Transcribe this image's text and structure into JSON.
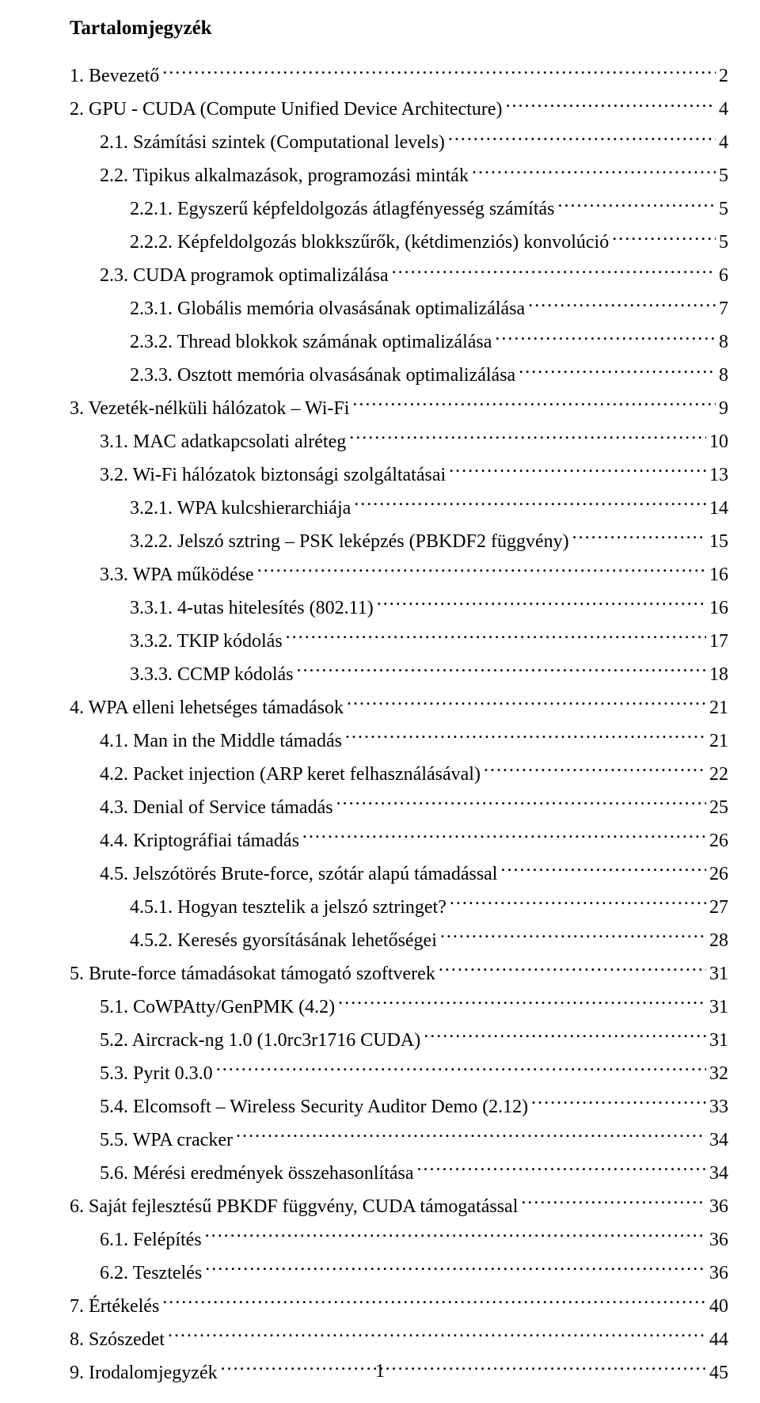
{
  "title": "Tartalomjegyzék",
  "page_number": "1",
  "entries": [
    {
      "indent": 0,
      "label": "1.   Bevezető",
      "page": "2"
    },
    {
      "indent": 0,
      "label": "2.   GPU - CUDA (Compute Unified Device Architecture)",
      "page": "4"
    },
    {
      "indent": 1,
      "label": "2.1.   Számítási szintek (Computational levels)",
      "page": "4"
    },
    {
      "indent": 1,
      "label": "2.2.   Tipikus alkalmazások, programozási minták",
      "page": "5"
    },
    {
      "indent": 2,
      "label": "2.2.1.   Egyszerű képfeldolgozás átlagfényesség számítás",
      "page": "5"
    },
    {
      "indent": 2,
      "label": "2.2.2.   Képfeldolgozás blokkszűrők, (kétdimenziós) konvolúció",
      "page": "5"
    },
    {
      "indent": 1,
      "label": "2.3.   CUDA programok optimalizálása",
      "page": "6"
    },
    {
      "indent": 2,
      "label": "2.3.1.   Globális memória olvasásának optimalizálása",
      "page": "7"
    },
    {
      "indent": 2,
      "label": "2.3.2.   Thread blokkok számának optimalizálása",
      "page": "8"
    },
    {
      "indent": 2,
      "label": "2.3.3.   Osztott memória olvasásának optimalizálása",
      "page": "8"
    },
    {
      "indent": 0,
      "label": "3.   Vezeték-nélküli hálózatok – Wi-Fi",
      "page": "9"
    },
    {
      "indent": 1,
      "label": "3.1.   MAC adatkapcsolati alréteg",
      "page": "10"
    },
    {
      "indent": 1,
      "label": "3.2.   Wi-Fi hálózatok biztonsági szolgáltatásai",
      "page": "13"
    },
    {
      "indent": 2,
      "label": "3.2.1.   WPA kulcshierarchiája",
      "page": "14"
    },
    {
      "indent": 2,
      "label": "3.2.2.   Jelszó sztring – PSK leképzés (PBKDF2 függvény)",
      "page": "15"
    },
    {
      "indent": 1,
      "label": "3.3.   WPA működése",
      "page": "16"
    },
    {
      "indent": 2,
      "label": "3.3.1.   4-utas hitelesítés (802.11)",
      "page": "16"
    },
    {
      "indent": 2,
      "label": "3.3.2.   TKIP kódolás",
      "page": "17"
    },
    {
      "indent": 2,
      "label": "3.3.3.   CCMP kódolás",
      "page": "18"
    },
    {
      "indent": 0,
      "label": "4.   WPA elleni lehetséges támadások",
      "page": "21"
    },
    {
      "indent": 1,
      "label": "4.1.   Man in the Middle támadás",
      "page": "21"
    },
    {
      "indent": 1,
      "label": "4.2.   Packet injection (ARP keret felhasználásával)",
      "page": "22"
    },
    {
      "indent": 1,
      "label": "4.3.   Denial of Service támadás",
      "page": "25"
    },
    {
      "indent": 1,
      "label": "4.4.   Kriptográfiai támadás",
      "page": "26"
    },
    {
      "indent": 1,
      "label": "4.5.   Jelszótörés Brute-force, szótár alapú támadással",
      "page": "26"
    },
    {
      "indent": 2,
      "label": "4.5.1.   Hogyan tesztelik a jelszó sztringet?",
      "page": "27"
    },
    {
      "indent": 2,
      "label": "4.5.2.   Keresés gyorsításának lehetőségei",
      "page": "28"
    },
    {
      "indent": 0,
      "label": "5.   Brute-force támadásokat támogató szoftverek",
      "page": "31"
    },
    {
      "indent": 1,
      "label": "5.1.   CoWPAtty/GenPMK (4.2)",
      "page": "31"
    },
    {
      "indent": 1,
      "label": "5.2.   Aircrack-ng 1.0 (1.0rc3r1716 CUDA)",
      "page": "31"
    },
    {
      "indent": 1,
      "label": "5.3.   Pyrit 0.3.0",
      "page": "32"
    },
    {
      "indent": 1,
      "label": "5.4.   Elcomsoft – Wireless Security Auditor Demo (2.12)",
      "page": "33"
    },
    {
      "indent": 1,
      "label": "5.5.   WPA cracker",
      "page": "34"
    },
    {
      "indent": 1,
      "label": "5.6.   Mérési eredmények összehasonlítása",
      "page": "34"
    },
    {
      "indent": 0,
      "label": "6.   Saját fejlesztésű PBKDF függvény, CUDA támogatással",
      "page": "36"
    },
    {
      "indent": 1,
      "label": "6.1.   Felépítés",
      "page": "36"
    },
    {
      "indent": 1,
      "label": "6.2.   Tesztelés",
      "page": "36"
    },
    {
      "indent": 0,
      "label": "7.   Értékelés",
      "page": "40"
    },
    {
      "indent": 0,
      "label": "8.   Szószedet",
      "page": "44"
    },
    {
      "indent": 0,
      "label": "9.   Irodalomjegyzék",
      "page": "45"
    }
  ]
}
